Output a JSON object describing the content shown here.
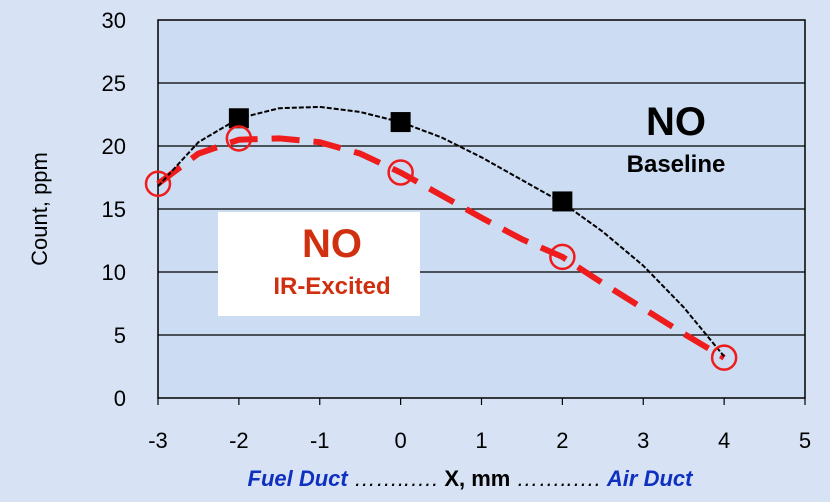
{
  "chart_data": {
    "type": "line",
    "title": "",
    "xlabel": "X, mm",
    "ylabel": "Count, ppm",
    "xlim": [
      -3,
      5
    ],
    "ylim": [
      0,
      30
    ],
    "xticks": [
      "-3",
      "-2",
      "-1",
      "0",
      "1",
      "2",
      "3",
      "4",
      "5"
    ],
    "yticks": [
      "0",
      "5",
      "10",
      "15",
      "20",
      "25",
      "30"
    ],
    "grid": "horizontal",
    "footer": {
      "left": "Fuel Duct",
      "dots_left": "……..….",
      "center": "X, mm",
      "dots_right": "……..….",
      "right": "Air Duct"
    },
    "series": [
      {
        "name": "NO Baseline",
        "color": "#000000",
        "markers": "filled-square",
        "points": [
          [
            -2,
            22.2
          ],
          [
            0,
            21.9
          ],
          [
            2,
            15.6
          ]
        ],
        "curve": [
          [
            -3,
            16.8
          ],
          [
            -2.5,
            20.3
          ],
          [
            -2,
            22.2
          ],
          [
            -1.5,
            23.0
          ],
          [
            -1,
            23.1
          ],
          [
            -0.5,
            22.7
          ],
          [
            0,
            21.9
          ],
          [
            0.5,
            20.7
          ],
          [
            1,
            19.1
          ],
          [
            1.5,
            17.3
          ],
          [
            2,
            15.5
          ],
          [
            2.5,
            13.2
          ],
          [
            3,
            10.5
          ],
          [
            3.5,
            7.2
          ],
          [
            4,
            3.3
          ]
        ]
      },
      {
        "name": "NO IR-Excited",
        "color": "#ee1c1c",
        "markers": "open-circle",
        "points": [
          [
            -3,
            17.0
          ],
          [
            -2,
            20.6
          ],
          [
            0,
            17.9
          ],
          [
            2,
            11.2
          ],
          [
            4,
            3.2
          ]
        ],
        "curve": [
          [
            -3,
            17.0
          ],
          [
            -2.5,
            19.4
          ],
          [
            -2,
            20.5
          ],
          [
            -1.5,
            20.6
          ],
          [
            -1,
            20.3
          ],
          [
            -0.5,
            19.4
          ],
          [
            0,
            17.9
          ],
          [
            0.5,
            16.1
          ],
          [
            1,
            14.3
          ],
          [
            1.5,
            12.6
          ],
          [
            2,
            11.2
          ],
          [
            2.5,
            9.1
          ],
          [
            3,
            7.1
          ],
          [
            3.5,
            5.1
          ],
          [
            4,
            3.2
          ]
        ]
      }
    ],
    "annotations": {
      "baseline_title": "NO",
      "baseline_sub": "Baseline",
      "excited_title": "NO",
      "excited_sub": "IR-Excited"
    }
  }
}
